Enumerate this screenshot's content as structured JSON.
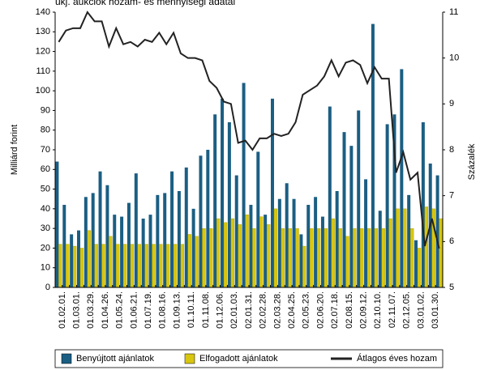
{
  "chart_data": {
    "type": "bar_line",
    "title": "ukj. aukciók hozam- és mennyiségi adatai",
    "y_label": "Milliárd forint",
    "y2_label": "Százalék",
    "categories": [
      "01.02.01.",
      null,
      "01.03.01.",
      null,
      "01.03.29.",
      null,
      "01.04.26.",
      null,
      "01.05.24.",
      null,
      "01.06.21.",
      null,
      "01.07.19.",
      null,
      "01.08.16.",
      null,
      "01.09.13.",
      null,
      "01.10.11.",
      null,
      "01.11.08.",
      null,
      "01.12.06.",
      null,
      "02.01.03.",
      null,
      "02.01.31.",
      null,
      "02.02.28.",
      null,
      "02.03.28.",
      null,
      "02.04.25.",
      null,
      "02.05.23.",
      null,
      "02.06.20.",
      null,
      "02.07.18.",
      null,
      "02.08.15.",
      null,
      "02.09.12.",
      null,
      "02.10.10.",
      null,
      "02.11.07.",
      null,
      "02.12.05.",
      null,
      "03.01.02.",
      null,
      "03.01.30.",
      null
    ],
    "series": [
      {
        "name": "Benyújtott ajánlatok",
        "color": "#1b5e83",
        "values": [
          64,
          42,
          27,
          29,
          46,
          48,
          59,
          52,
          37,
          36,
          43,
          58,
          35,
          37,
          47,
          48,
          59,
          49,
          61,
          40,
          67,
          70,
          88,
          96,
          84,
          57,
          104,
          42,
          69,
          37,
          96,
          45,
          53,
          45,
          27,
          42,
          46,
          36,
          92,
          49,
          79,
          72,
          90,
          55,
          134,
          39,
          83,
          88,
          111,
          47,
          24,
          84,
          63,
          57
        ]
      },
      {
        "name": "Elfogadott ajánlatok",
        "color": "#d8c610",
        "values": [
          22,
          22,
          21,
          20,
          29,
          22,
          22,
          26,
          22,
          22,
          22,
          22,
          22,
          22,
          22,
          22,
          22,
          22,
          27,
          26,
          30,
          30,
          35,
          33,
          35,
          32,
          37,
          30,
          36,
          32,
          40,
          30,
          30,
          30,
          21,
          30,
          30,
          30,
          35,
          30,
          26,
          30,
          30,
          30,
          30,
          30,
          35,
          40,
          40,
          30,
          20,
          41,
          40,
          35
        ]
      },
      {
        "name": "Átlagos éves hozam",
        "color": "#222222",
        "axis": "y2",
        "values": [
          10.35,
          10.6,
          10.65,
          10.65,
          11.0,
          10.8,
          10.8,
          10.25,
          10.65,
          10.3,
          10.35,
          10.25,
          10.4,
          10.35,
          10.55,
          10.3,
          10.55,
          10.1,
          10.0,
          10.0,
          9.95,
          9.5,
          9.35,
          9.05,
          9.0,
          8.15,
          8.2,
          8.0,
          8.25,
          8.25,
          8.35,
          8.3,
          8.35,
          8.6,
          9.2,
          9.3,
          9.4,
          9.6,
          9.95,
          9.6,
          9.9,
          9.95,
          9.85,
          9.45,
          9.8,
          9.55,
          9.55,
          7.5,
          7.95,
          7.35,
          7.5,
          5.9,
          6.5,
          5.85
        ]
      }
    ],
    "ylim": [
      0,
      140
    ],
    "yticks": [
      0,
      10,
      20,
      30,
      40,
      50,
      60,
      70,
      80,
      90,
      100,
      110,
      120,
      130,
      140
    ],
    "y2lim": [
      5,
      11
    ],
    "y2ticks": [
      5,
      6,
      7,
      8,
      9,
      10,
      11
    ]
  }
}
